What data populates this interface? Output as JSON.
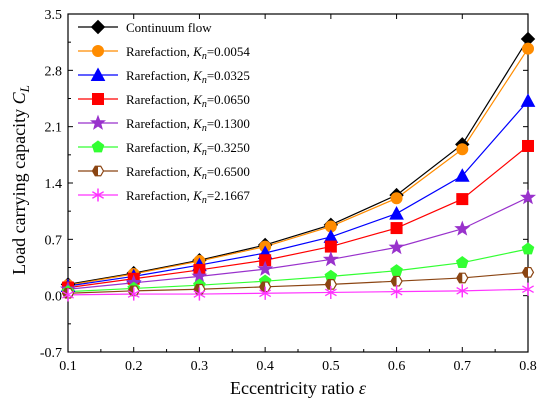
{
  "chart_data": {
    "type": "line",
    "xlabel": "Eccentricity ratio",
    "xlabel_symbol": "ε",
    "ylabel": "Load carrying capacity",
    "ylabel_symbol": "C",
    "ylabel_subscript": "L",
    "xlim": [
      0.1,
      0.8
    ],
    "ylim": [
      -0.7,
      3.5
    ],
    "x_ticks": [
      "0.1",
      "0.2",
      "0.3",
      "0.4",
      "0.5",
      "0.6",
      "0.7",
      "0.8"
    ],
    "y_ticks": [
      "-0.7",
      "0.0",
      "0.7",
      "1.4",
      "2.1",
      "2.8",
      "3.5"
    ],
    "grid": false,
    "legend_position": "top-left",
    "x": [
      0.1,
      0.2,
      0.3,
      0.4,
      0.5,
      0.6,
      0.7,
      0.8
    ],
    "series": [
      {
        "name": "Continuum flow",
        "name_main": "Continuum flow",
        "name_value": "",
        "marker": "diamond",
        "color": "#000000",
        "values": [
          0.14,
          0.28,
          0.44,
          0.63,
          0.88,
          1.25,
          1.88,
          3.19
        ]
      },
      {
        "name": "Rarefaction, Kn=0.0054",
        "name_main": "Rarefaction, ",
        "name_value": "=0.0054",
        "marker": "circle",
        "color": "#ff8c00",
        "values": [
          0.13,
          0.27,
          0.43,
          0.61,
          0.86,
          1.21,
          1.82,
          3.07
        ]
      },
      {
        "name": "Rarefaction, Kn=0.0325",
        "name_main": "Rarefaction, ",
        "name_value": "=0.0325",
        "marker": "triangle",
        "color": "#0000ff",
        "values": [
          0.12,
          0.24,
          0.38,
          0.53,
          0.73,
          1.02,
          1.49,
          2.42
        ]
      },
      {
        "name": "Rarefaction, Kn=0.0650",
        "name_main": "Rarefaction, ",
        "name_value": "=0.0650",
        "marker": "square",
        "color": "#ff0000",
        "values": [
          0.1,
          0.21,
          0.32,
          0.44,
          0.61,
          0.84,
          1.2,
          1.86
        ]
      },
      {
        "name": "Rarefaction, Kn=0.1300",
        "name_main": "Rarefaction, ",
        "name_value": "=0.1300",
        "marker": "star",
        "color": "#9932cc",
        "values": [
          0.08,
          0.16,
          0.24,
          0.33,
          0.45,
          0.6,
          0.83,
          1.22
        ]
      },
      {
        "name": "Rarefaction, Kn=0.3250",
        "name_main": "Rarefaction, ",
        "name_value": "=0.3250",
        "marker": "pentagon",
        "color": "#33ff33",
        "values": [
          0.05,
          0.09,
          0.13,
          0.18,
          0.24,
          0.31,
          0.41,
          0.58
        ]
      },
      {
        "name": "Rarefaction, Kn=0.6500",
        "name_main": "Rarefaction, ",
        "name_value": "=0.6500",
        "marker": "hexagon-half",
        "color": "#8b4513",
        "values": [
          0.03,
          0.06,
          0.08,
          0.11,
          0.14,
          0.18,
          0.22,
          0.29
        ]
      },
      {
        "name": "Rarefaction, Kn=2.1667",
        "name_main": "Rarefaction, ",
        "name_value": "=2.1667",
        "marker": "asterisk",
        "color": "#ff33ff",
        "values": [
          0.01,
          0.02,
          0.02,
          0.03,
          0.04,
          0.05,
          0.06,
          0.08
        ]
      }
    ],
    "legend_symbol": "K",
    "legend_symbol_sub": "n"
  }
}
